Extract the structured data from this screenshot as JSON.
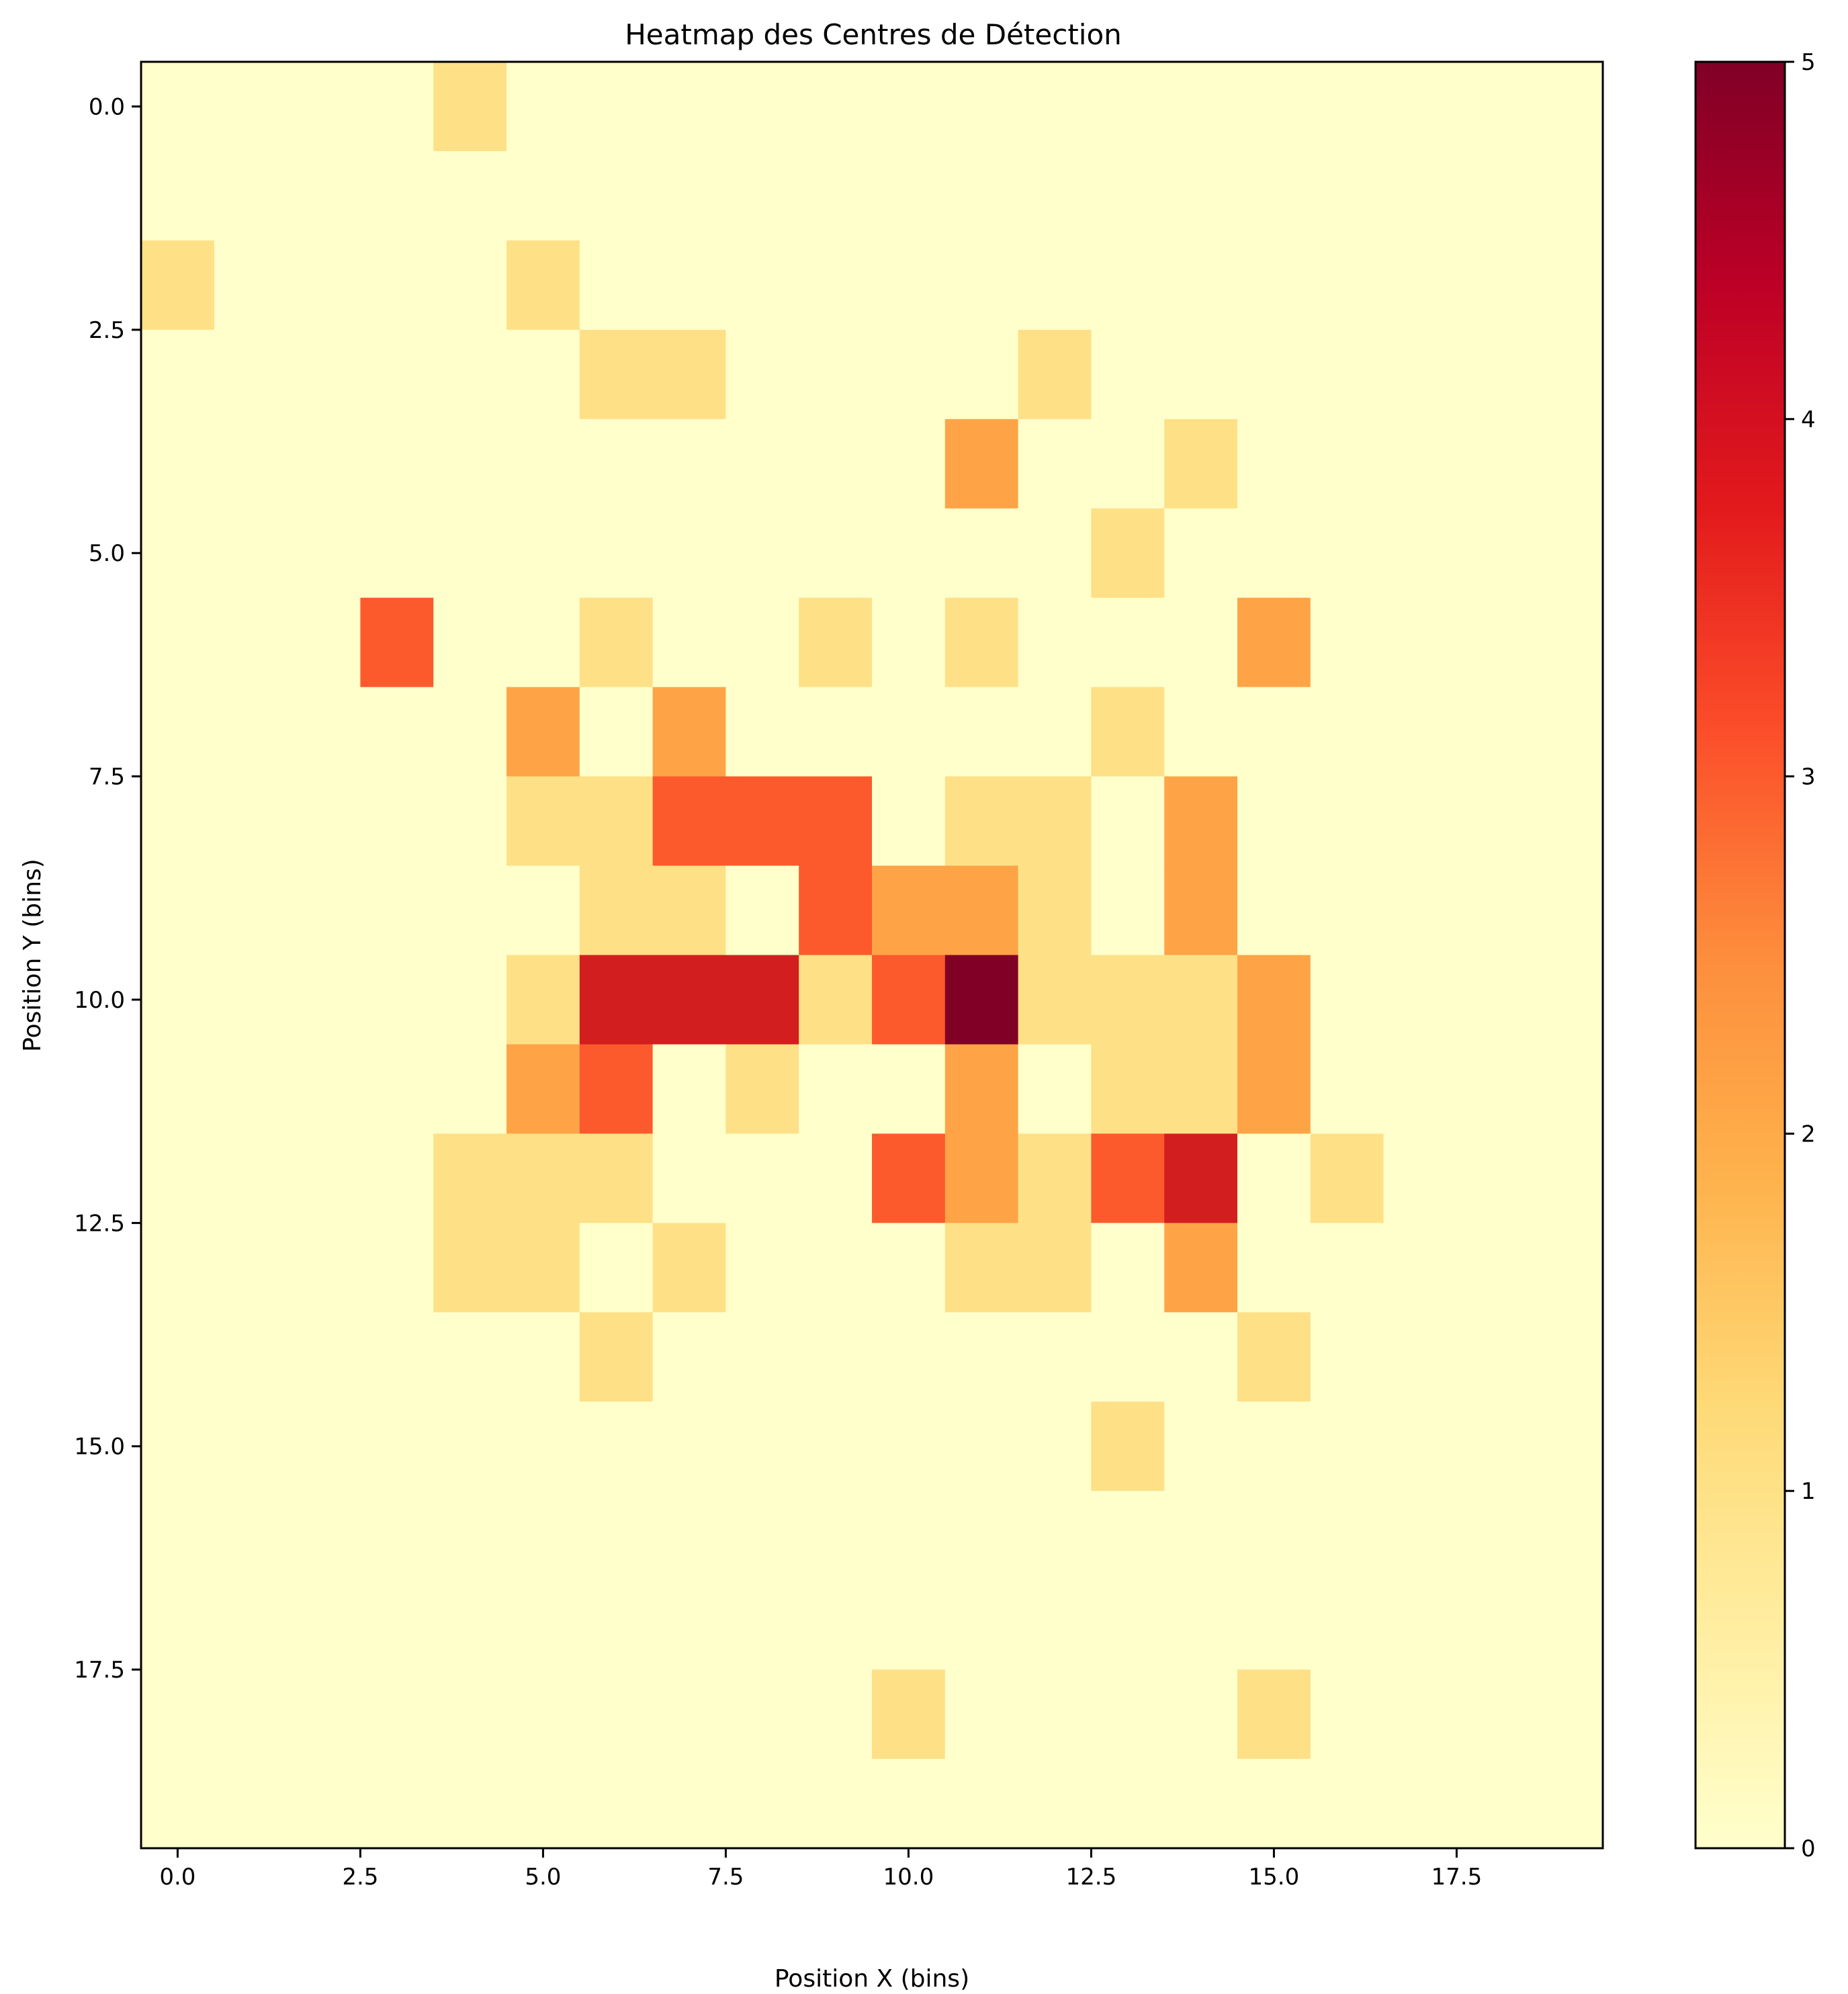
{
  "chart_data": {
    "type": "heatmap",
    "title": "Heatmap des Centres de Détection",
    "xlabel": "Position X (bins)",
    "ylabel": "Position Y (bins)",
    "x_ticks": [
      "0.0",
      "2.5",
      "5.0",
      "7.5",
      "10.0",
      "12.5",
      "15.0",
      "17.5"
    ],
    "y_ticks": [
      "0.0",
      "2.5",
      "5.0",
      "7.5",
      "10.0",
      "12.5",
      "15.0",
      "17.5"
    ],
    "x_tick_values": [
      0,
      2.5,
      5,
      7.5,
      10,
      12.5,
      15,
      17.5
    ],
    "y_tick_values": [
      0,
      2.5,
      5,
      7.5,
      10,
      12.5,
      15,
      17.5
    ],
    "xlim": [
      -0.5,
      19.5
    ],
    "ylim": [
      19.5,
      -0.5
    ],
    "colormap": "YlOrRd",
    "colorbar": {
      "vmin": 0,
      "vmax": 5,
      "ticks": [
        "0",
        "1",
        "2",
        "3",
        "4",
        "5"
      ],
      "tick_values": [
        0,
        1,
        2,
        3,
        4,
        5
      ]
    },
    "grid": false,
    "matrix": [
      [
        0,
        0,
        0,
        0,
        1,
        0,
        0,
        0,
        0,
        0,
        0,
        0,
        0,
        0,
        0,
        0,
        0,
        0,
        0,
        0
      ],
      [
        0,
        0,
        0,
        0,
        0,
        0,
        0,
        0,
        0,
        0,
        0,
        0,
        0,
        0,
        0,
        0,
        0,
        0,
        0,
        0
      ],
      [
        1,
        0,
        0,
        0,
        0,
        1,
        0,
        0,
        0,
        0,
        0,
        0,
        0,
        0,
        0,
        0,
        0,
        0,
        0,
        0
      ],
      [
        0,
        0,
        0,
        0,
        0,
        0,
        1,
        1,
        0,
        0,
        0,
        0,
        1,
        0,
        0,
        0,
        0,
        0,
        0,
        0
      ],
      [
        0,
        0,
        0,
        0,
        0,
        0,
        0,
        0,
        0,
        0,
        0,
        2,
        0,
        0,
        1,
        0,
        0,
        0,
        0,
        0
      ],
      [
        0,
        0,
        0,
        0,
        0,
        0,
        0,
        0,
        0,
        0,
        0,
        0,
        0,
        1,
        0,
        0,
        0,
        0,
        0,
        0
      ],
      [
        0,
        0,
        0,
        3,
        0,
        0,
        1,
        0,
        0,
        1,
        0,
        1,
        0,
        0,
        0,
        2,
        0,
        0,
        0,
        0
      ],
      [
        0,
        0,
        0,
        0,
        0,
        2,
        0,
        2,
        0,
        0,
        0,
        0,
        0,
        1,
        0,
        0,
        0,
        0,
        0,
        0
      ],
      [
        0,
        0,
        0,
        0,
        0,
        1,
        1,
        3,
        3,
        3,
        0,
        1,
        1,
        0,
        2,
        0,
        0,
        0,
        0,
        0
      ],
      [
        0,
        0,
        0,
        0,
        0,
        0,
        1,
        1,
        0,
        3,
        2,
        2,
        1,
        0,
        2,
        0,
        0,
        0,
        0,
        0
      ],
      [
        0,
        0,
        0,
        0,
        0,
        1,
        4,
        4,
        4,
        1,
        3,
        5,
        1,
        1,
        1,
        2,
        0,
        0,
        0,
        0
      ],
      [
        0,
        0,
        0,
        0,
        0,
        2,
        3,
        0,
        1,
        0,
        0,
        2,
        0,
        1,
        1,
        2,
        0,
        0,
        0,
        0
      ],
      [
        0,
        0,
        0,
        0,
        1,
        1,
        1,
        0,
        0,
        0,
        3,
        2,
        1,
        3,
        4,
        0,
        1,
        0,
        0,
        0
      ],
      [
        0,
        0,
        0,
        0,
        1,
        1,
        0,
        1,
        0,
        0,
        0,
        1,
        1,
        0,
        2,
        0,
        0,
        0,
        0,
        0
      ],
      [
        0,
        0,
        0,
        0,
        0,
        0,
        1,
        0,
        0,
        0,
        0,
        0,
        0,
        0,
        0,
        1,
        0,
        0,
        0,
        0
      ],
      [
        0,
        0,
        0,
        0,
        0,
        0,
        0,
        0,
        0,
        0,
        0,
        0,
        0,
        1,
        0,
        0,
        0,
        0,
        0,
        0
      ],
      [
        0,
        0,
        0,
        0,
        0,
        0,
        0,
        0,
        0,
        0,
        0,
        0,
        0,
        0,
        0,
        0,
        0,
        0,
        0,
        0
      ],
      [
        0,
        0,
        0,
        0,
        0,
        0,
        0,
        0,
        0,
        0,
        0,
        0,
        0,
        0,
        0,
        0,
        0,
        0,
        0,
        0
      ],
      [
        0,
        0,
        0,
        0,
        0,
        0,
        0,
        0,
        0,
        0,
        1,
        0,
        0,
        0,
        0,
        1,
        0,
        0,
        0,
        0
      ],
      [
        0,
        0,
        0,
        0,
        0,
        0,
        0,
        0,
        0,
        0,
        0,
        0,
        0,
        0,
        0,
        0,
        0,
        0,
        0,
        0
      ]
    ],
    "cell_colors": {
      "0": "#ffffcc",
      "1": "#fee087",
      "2": "#fea446",
      "3": "#fc5a2d",
      "4": "#d31e20",
      "5": "#800026"
    },
    "colorbar_gradient": [
      "#ffffcc",
      "#ffeda0",
      "#fed976",
      "#feb24c",
      "#fd8d3c",
      "#fc4e2a",
      "#e31a1c",
      "#bd0026",
      "#800026"
    ]
  }
}
